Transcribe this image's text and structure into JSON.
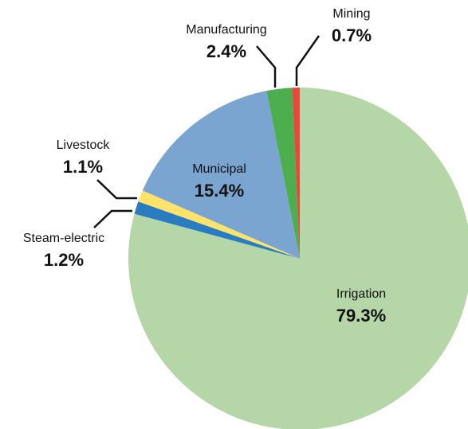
{
  "chart_data": {
    "type": "pie",
    "categories": [
      "Irrigation",
      "Steam-electric",
      "Livestock",
      "Municipal",
      "Manufacturing",
      "Mining"
    ],
    "values": [
      79.3,
      1.2,
      1.1,
      15.4,
      2.4,
      0.7
    ],
    "value_labels": [
      "79.3%",
      "1.2%",
      "1.1%",
      "15.4%",
      "2.4%",
      "0.7%"
    ],
    "colors": [
      "#b5d6a7",
      "#2a7cc0",
      "#fde36a",
      "#7ba5d1",
      "#4cae4c",
      "#e8473a"
    ]
  }
}
